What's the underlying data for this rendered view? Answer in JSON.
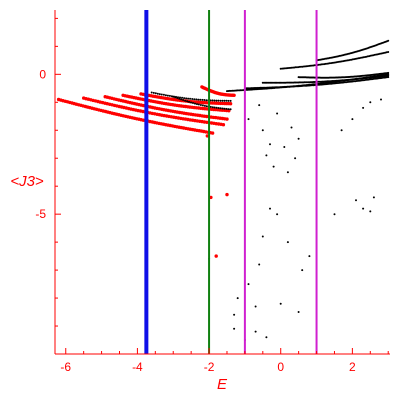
{
  "chart_data": {
    "type": "scatter",
    "title": "",
    "xlabel": "E",
    "ylabel": "<J3>",
    "xlim": [
      -6.3,
      3.05
    ],
    "ylim": [
      -10.0,
      2.3
    ],
    "x_ticks": [
      -6,
      -4,
      -2,
      0,
      2
    ],
    "y_ticks": [
      0,
      -5
    ],
    "x_tick_labels": [
      "-6",
      "-4",
      "-2",
      "0",
      "2"
    ],
    "y_tick_labels": [
      "0",
      "-5"
    ],
    "grid": false,
    "legend": "none",
    "vertical_lines": [
      {
        "x": -3.75,
        "color": "#1010e8",
        "width": "thick"
      },
      {
        "x": -2.0,
        "color": "#108010",
        "width": "thin"
      },
      {
        "x": -1.0,
        "color": "#d020d0",
        "width": "thin"
      },
      {
        "x": 1.0,
        "color": "#d020d0",
        "width": "thin"
      }
    ],
    "series": [
      {
        "color": "#ff0000",
        "bands": [
          {
            "x": [
              -6.2,
              -1.9
            ],
            "y": [
              -0.9,
              -2.1
            ],
            "n": 70
          },
          {
            "x": [
              -5.5,
              -1.6
            ],
            "y": [
              -0.85,
              -1.8
            ],
            "n": 60
          },
          {
            "x": [
              -4.9,
              -1.5
            ],
            "y": [
              -0.8,
              -1.6
            ],
            "n": 55
          },
          {
            "x": [
              -4.4,
              -1.45
            ],
            "y": [
              -0.75,
              -1.3
            ],
            "n": 50
          },
          {
            "x": [
              -3.9,
              -1.4
            ],
            "y": [
              -0.7,
              -1.05
            ],
            "n": 45
          },
          {
            "x": [
              -2.2,
              -1.3
            ],
            "y": [
              -0.45,
              -0.75
            ],
            "n": 25
          }
        ],
        "points": [
          [
            -2.05,
            -2.2
          ],
          [
            -1.5,
            -4.3
          ],
          [
            -1.8,
            -6.5
          ],
          [
            -1.95,
            -4.4
          ]
        ]
      },
      {
        "color": "#000000",
        "bands": [
          {
            "x": [
              -1.5,
              3.0
            ],
            "y": [
              -0.6,
              0.0
            ],
            "n": 120
          },
          {
            "x": [
              -1.0,
              3.0
            ],
            "y": [
              -0.5,
              -0.1
            ],
            "n": 110
          },
          {
            "x": [
              -0.5,
              3.0
            ],
            "y": [
              -0.3,
              -0.05
            ],
            "n": 100
          },
          {
            "x": [
              0.5,
              3.0
            ],
            "y": [
              -0.1,
              0.05
            ],
            "n": 90
          },
          {
            "x": [
              0.0,
              3.0
            ],
            "y": [
              0.2,
              0.8
            ],
            "n": 80
          },
          {
            "x": [
              1.0,
              3.0
            ],
            "y": [
              0.5,
              1.2
            ],
            "n": 60
          },
          {
            "x": [
              -3.6,
              -1.4
            ],
            "y": [
              -0.65,
              -0.95
            ],
            "n": 40
          },
          {
            "x": [
              -3.0,
              -1.4
            ],
            "y": [
              -0.8,
              -1.25
            ],
            "n": 30
          }
        ],
        "points": [
          [
            -0.3,
            -2.5
          ],
          [
            -0.5,
            -2.0
          ],
          [
            -0.9,
            -1.6
          ],
          [
            -0.6,
            -1.1
          ],
          [
            -0.1,
            -1.4
          ],
          [
            0.3,
            -1.9
          ],
          [
            0.5,
            -2.3
          ],
          [
            0.4,
            -3.0
          ],
          [
            -0.4,
            -2.9
          ],
          [
            0.2,
            -3.5
          ],
          [
            0.1,
            -2.6
          ],
          [
            -0.2,
            -3.3
          ],
          [
            1.7,
            -2.0
          ],
          [
            2.0,
            -1.6
          ],
          [
            2.3,
            -1.2
          ],
          [
            2.5,
            -1.0
          ],
          [
            2.8,
            -0.9
          ],
          [
            2.1,
            -4.5
          ],
          [
            2.3,
            -4.8
          ],
          [
            2.5,
            -4.9
          ],
          [
            2.6,
            -4.4
          ],
          [
            1.5,
            -5.0
          ],
          [
            -0.3,
            -4.8
          ],
          [
            -0.1,
            -5.0
          ],
          [
            -0.5,
            -5.8
          ],
          [
            0.2,
            -6.0
          ],
          [
            -0.6,
            -6.8
          ],
          [
            0.6,
            -7.0
          ],
          [
            0.8,
            -6.5
          ],
          [
            -0.9,
            -7.5
          ],
          [
            -0.7,
            -8.3
          ],
          [
            0.0,
            -8.2
          ],
          [
            0.5,
            -8.5
          ],
          [
            -1.2,
            -8.0
          ],
          [
            -1.3,
            -8.6
          ],
          [
            -1.0,
            -9.5
          ],
          [
            -1.3,
            -9.1
          ],
          [
            -0.4,
            -9.4
          ],
          [
            -0.7,
            -9.2
          ],
          [
            -2.0,
            -6.6
          ]
        ]
      }
    ]
  }
}
